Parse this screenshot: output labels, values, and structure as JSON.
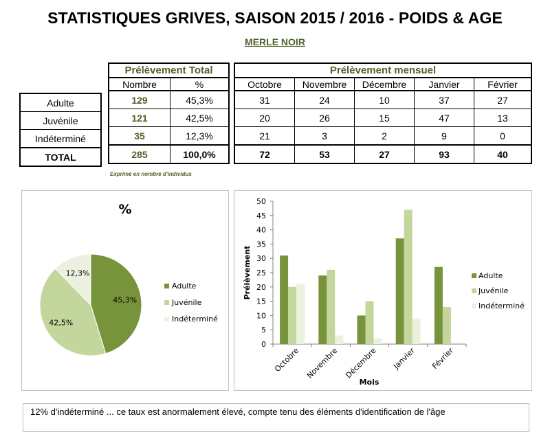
{
  "header": {
    "title": "STATISTIQUES GRIVES, SAISON 2015 / 2016 - POIDS & AGE",
    "species": "MERLE NOIR"
  },
  "table": {
    "total_group": "Prélèvement Total",
    "monthly_group": "Prélèvement mensuel",
    "col_nombre": "Nombre",
    "col_pct": "%",
    "months": [
      "Octobre",
      "Novembre",
      "Décembre",
      "Janvier",
      "Février"
    ],
    "rows": [
      {
        "label": "Adulte",
        "nombre": "129",
        "pct": "45,3%",
        "monthly": [
          "31",
          "24",
          "10",
          "37",
          "27"
        ]
      },
      {
        "label": "Juvénile",
        "nombre": "121",
        "pct": "42,5%",
        "monthly": [
          "20",
          "26",
          "15",
          "47",
          "13"
        ]
      },
      {
        "label": "Indéterminé",
        "nombre": "35",
        "pct": "12,3%",
        "monthly": [
          "21",
          "3",
          "2",
          "9",
          "0"
        ]
      },
      {
        "label": "TOTAL",
        "nombre": "285",
        "pct": "100,0%",
        "monthly": [
          "72",
          "53",
          "27",
          "93",
          "40"
        ]
      }
    ],
    "footnote": "Exprimé en nombre d'individus"
  },
  "colors": {
    "adulte": "#77933c",
    "juvenile": "#c3d69b",
    "indetermine": "#ebf1de",
    "title_green": "#4f6228"
  },
  "chart_data": [
    {
      "type": "pie",
      "title": "%",
      "labels": [
        "Adulte",
        "Juvénile",
        "Indéterminé"
      ],
      "values": [
        45.3,
        42.5,
        12.3
      ],
      "data_labels": [
        "45,3%",
        "42,5%",
        "12,3%"
      ],
      "legend": "right"
    },
    {
      "type": "bar",
      "title": "",
      "categories": [
        "Octobre",
        "Novembre",
        "Décembre",
        "Janvier",
        "Février"
      ],
      "series": [
        {
          "name": "Adulte",
          "values": [
            31,
            24,
            10,
            37,
            27
          ]
        },
        {
          "name": "Juvénile",
          "values": [
            20,
            26,
            15,
            47,
            13
          ]
        },
        {
          "name": "Indéterminé",
          "values": [
            21,
            3,
            2,
            9,
            0
          ]
        }
      ],
      "xlabel": "Mois",
      "ylabel": "Prélèvement",
      "ylim": [
        0,
        50
      ],
      "yticks": [
        0,
        5,
        10,
        15,
        20,
        25,
        30,
        35,
        40,
        45,
        50
      ],
      "grid": false,
      "legend": "right"
    }
  ],
  "comment": {
    "text": "12% d'indéterminé ... ce taux est anormalement élevé, compte tenu des éléments d'identification de l'âge"
  }
}
